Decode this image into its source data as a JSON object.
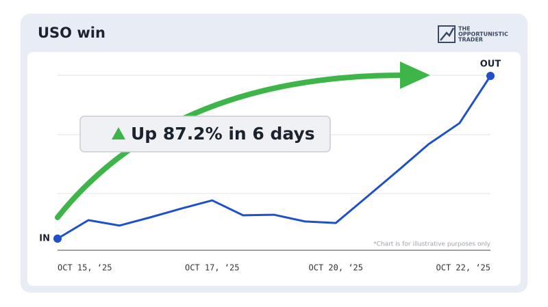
{
  "chart_data": {
    "type": "line",
    "title": "USO win",
    "logo": [
      "THE",
      "OPPORTUNISTIC",
      "TRADER"
    ],
    "annotation": "Up 87.2% in 6 days",
    "footnote": "*Chart is for illustrative purposes only",
    "start_label": "IN",
    "end_label": "OUT",
    "categories": [
      "OCT 15, ‘25",
      null,
      null,
      null,
      null,
      "OCT 17, ‘25",
      null,
      null,
      null,
      "OCT 20, ‘25",
      null,
      null,
      null,
      null,
      "OCT 22, ‘25"
    ],
    "values": [
      0,
      9.9,
      7.0,
      11.4,
      16.1,
      20.5,
      12.5,
      12.8,
      9.2,
      8.4,
      22.3,
      36.3,
      50.6,
      61.9,
      87.2
    ],
    "color": "#1f4fc9",
    "ylim": [
      0,
      87.2
    ],
    "yticks": [
      24.2,
      55.7,
      87.5
    ],
    "grid": true
  }
}
